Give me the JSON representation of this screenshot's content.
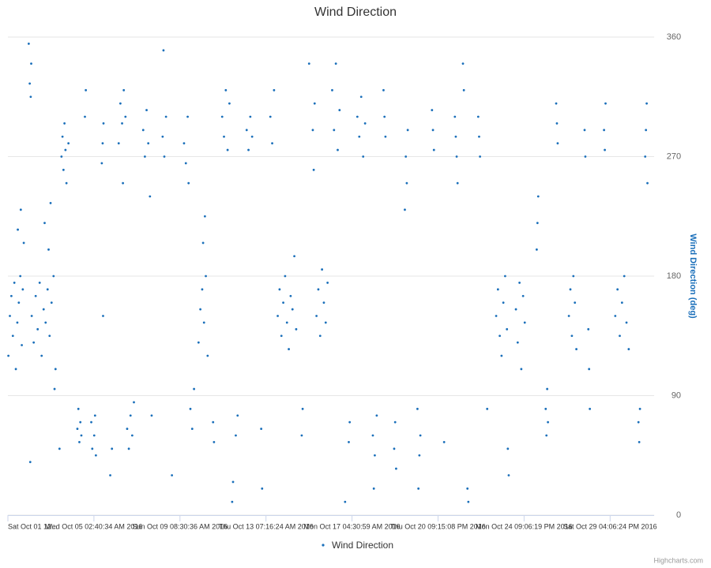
{
  "chart_data": {
    "type": "scatter",
    "title": "Wind Direction",
    "y_axis_label": "Wind Direction (deg)",
    "credits": "Highcharts.com",
    "grid": true,
    "legend": "bottom",
    "xlim": [
      "2016-10-01T12:00",
      "2016-11-01T03:00"
    ],
    "xticks": [
      {
        "value": "2016-10-01T12:00",
        "label": "Sat Oct 01 12..."
      },
      {
        "value": "2016-10-05T02:40:34",
        "label": "Wed Oct 05 02:40:34 AM 2016"
      },
      {
        "value": "2016-10-09T08:30:36",
        "label": "Sun Oct 09 08:30:36 AM 2016"
      },
      {
        "value": "2016-10-13T07:16:24",
        "label": "Thu Oct 13 07:16:24 AM 2016"
      },
      {
        "value": "2016-10-17T04:30:59",
        "label": "Mon Oct 17 04:30:59 AM 2016"
      },
      {
        "value": "2016-10-20T21:15:08",
        "label": "Thu Oct 20 09:15:08 PM 2016"
      },
      {
        "value": "2016-10-24T21:06:19",
        "label": "Mon Oct 24 09:06:19 PM 2016"
      },
      {
        "value": "2016-10-29T16:06:24",
        "label": "Sat Oct 29 04:06:24 PM 2016"
      }
    ],
    "ylim": [
      0,
      360
    ],
    "yticks": [
      0,
      90,
      180,
      270,
      360
    ],
    "series": [
      {
        "name": "Wind Direction",
        "color": "#1a6fba",
        "x": [
          "2016-10-01T12:30",
          "2016-10-01T14:00",
          "2016-10-01T15:30",
          "2016-10-01T17:00",
          "2016-10-01T18:30",
          "2016-10-01T20:00",
          "2016-10-01T21:30",
          "2016-10-01T23:00",
          "2016-10-02T00:30",
          "2016-10-02T02:00",
          "2016-10-02T03:00",
          "2016-10-01T22:00",
          "2016-10-02T01:00",
          "2016-10-02T04:00",
          "2016-10-02T09:00",
          "2016-10-02T10:00",
          "2016-10-02T11:00",
          "2016-10-02T11:30",
          "2016-10-02T10:30",
          "2016-10-02T12:00",
          "2016-10-02T14:00",
          "2016-10-02T16:00",
          "2016-10-02T18:00",
          "2016-10-02T20:00",
          "2016-10-02T22:00",
          "2016-10-03T00:00",
          "2016-10-03T02:00",
          "2016-10-03T04:00",
          "2016-10-03T06:00",
          "2016-10-03T08:00",
          "2016-10-03T10:00",
          "2016-10-03T12:00",
          "2016-10-03T01:00",
          "2016-10-03T05:00",
          "2016-10-03T07:00",
          "2016-10-03T11:00",
          "2016-10-03T16:00",
          "2016-10-03T18:00",
          "2016-10-03T19:00",
          "2016-10-03T20:00",
          "2016-10-03T21:00",
          "2016-10-03T22:00",
          "2016-10-03T23:00",
          "2016-10-04T01:00",
          "2016-10-04T10:00",
          "2016-10-04T11:00",
          "2016-10-04T12:00",
          "2016-10-04T13:00",
          "2016-10-04T14:00",
          "2016-10-04T17:36",
          "2016-10-04T18:30",
          "2016-10-05T00:00",
          "2016-10-05T01:00",
          "2016-10-05T03:00",
          "2016-10-05T04:00",
          "2016-10-05T05:00",
          "2016-10-05T12:00",
          "2016-10-05T13:00",
          "2016-10-05T13:30",
          "2016-10-05T14:00",
          "2016-10-05T22:00",
          "2016-10-06T00:00",
          "2016-10-06T08:00",
          "2016-10-06T10:00",
          "2016-10-06T12:00",
          "2016-10-06T13:00",
          "2016-10-06T14:00",
          "2016-10-06T16:00",
          "2016-10-06T18:00",
          "2016-10-06T20:00",
          "2016-10-06T22:00",
          "2016-10-07T00:00",
          "2016-10-07T02:00",
          "2016-10-07T13:00",
          "2016-10-07T15:00",
          "2016-10-07T17:00",
          "2016-10-07T19:00",
          "2016-10-07T21:00",
          "2016-10-07T23:00",
          "2016-10-08T12:00",
          "2016-10-08T13:00",
          "2016-10-08T14:00",
          "2016-10-08T16:00",
          "2016-10-08T23:00",
          "2016-10-09T13:00",
          "2016-10-09T15:00",
          "2016-10-09T17:00",
          "2016-10-09T18:00",
          "2016-10-09T20:00",
          "2016-10-09T22:00",
          "2016-10-10T00:00",
          "2016-10-10T05:00",
          "2016-10-10T07:00",
          "2016-10-10T09:00",
          "2016-10-10T10:00",
          "2016-10-10T11:00",
          "2016-10-10T12:00",
          "2016-10-10T13:00",
          "2016-10-10T15:00",
          "2016-10-10T21:00",
          "2016-10-10T22:00",
          "2016-10-11T07:00",
          "2016-10-11T09:00",
          "2016-10-11T11:00",
          "2016-10-11T13:00",
          "2016-10-11T15:00",
          "2016-10-11T18:00",
          "2016-10-11T19:00",
          "2016-10-11T22:00",
          "2016-10-12T00:00",
          "2016-10-12T10:00",
          "2016-10-12T12:00",
          "2016-10-12T14:00",
          "2016-10-12T16:00",
          "2016-10-13T02:00",
          "2016-10-13T03:00",
          "2016-10-13T12:00",
          "2016-10-13T14:00",
          "2016-10-13T16:00",
          "2016-10-13T20:00",
          "2016-10-13T22:00",
          "2016-10-14T00:00",
          "2016-10-14T02:00",
          "2016-10-14T04:00",
          "2016-10-14T06:00",
          "2016-10-14T08:00",
          "2016-10-14T10:00",
          "2016-10-14T12:00",
          "2016-10-14T14:00",
          "2016-10-14T16:00",
          "2016-10-14T22:00",
          "2016-10-14T23:00",
          "2016-10-15T06:00",
          "2016-10-15T10:00",
          "2016-10-15T11:00",
          "2016-10-15T12:00",
          "2016-10-15T14:00",
          "2016-10-15T16:00",
          "2016-10-15T18:00",
          "2016-10-15T20:00",
          "2016-10-15T22:00",
          "2016-10-16T00:00",
          "2016-10-16T02:00",
          "2016-10-16T07:00",
          "2016-10-16T09:00",
          "2016-10-16T11:00",
          "2016-10-16T13:00",
          "2016-10-16T15:00",
          "2016-10-16T21:00",
          "2016-10-17T01:00",
          "2016-10-17T02:00",
          "2016-10-17T10:00",
          "2016-10-17T12:00",
          "2016-10-17T14:00",
          "2016-10-17T16:00",
          "2016-10-17T18:00",
          "2016-10-18T02:00",
          "2016-10-18T03:00",
          "2016-10-18T04:00",
          "2016-10-18T06:00",
          "2016-10-18T13:00",
          "2016-10-18T14:00",
          "2016-10-18T15:00",
          "2016-10-19T00:00",
          "2016-10-19T01:00",
          "2016-10-19T02:00",
          "2016-10-19T11:00",
          "2016-10-19T12:00",
          "2016-10-19T13:00",
          "2016-10-19T14:00",
          "2016-10-20T00:00",
          "2016-10-20T01:00",
          "2016-10-20T02:00",
          "2016-10-20T03:00",
          "2016-10-20T15:00",
          "2016-10-20T16:00",
          "2016-10-20T17:00",
          "2016-10-21T04:00",
          "2016-10-21T16:00",
          "2016-10-21T17:00",
          "2016-10-21T18:00",
          "2016-10-21T19:00",
          "2016-10-22T01:00",
          "2016-10-22T02:00",
          "2016-10-22T06:00",
          "2016-10-22T07:00",
          "2016-10-22T18:00",
          "2016-10-22T19:00",
          "2016-10-22T20:00",
          "2016-10-23T04:00",
          "2016-10-23T14:00",
          "2016-10-23T16:00",
          "2016-10-23T18:00",
          "2016-10-23T20:00",
          "2016-10-23T22:00",
          "2016-10-24T00:00",
          "2016-10-24T02:00",
          "2016-10-24T03:00",
          "2016-10-24T04:00",
          "2016-10-24T12:00",
          "2016-10-24T14:00",
          "2016-10-24T16:00",
          "2016-10-24T18:00",
          "2016-10-24T20:00",
          "2016-10-24T22:00",
          "2016-10-25T14:00",
          "2016-10-25T15:00",
          "2016-10-25T16:00",
          "2016-10-26T02:00",
          "2016-10-26T03:00",
          "2016-10-26T04:00",
          "2016-10-26T05:00",
          "2016-10-26T16:00",
          "2016-10-26T17:00",
          "2016-10-26T18:00",
          "2016-10-27T09:00",
          "2016-10-27T11:00",
          "2016-10-27T13:00",
          "2016-10-27T15:00",
          "2016-10-27T17:00",
          "2016-10-27T19:00",
          "2016-10-28T06:00",
          "2016-10-28T07:00",
          "2016-10-28T11:00",
          "2016-10-28T12:00",
          "2016-10-28T13:00",
          "2016-10-29T08:00",
          "2016-10-29T09:00",
          "2016-10-29T10:00",
          "2016-10-29T23:00",
          "2016-10-30T02:00",
          "2016-10-30T05:00",
          "2016-10-30T08:00",
          "2016-10-30T11:00",
          "2016-10-30T14:00",
          "2016-10-30T17:00",
          "2016-10-31T06:00",
          "2016-10-31T07:00",
          "2016-10-31T08:00",
          "2016-10-31T15:00",
          "2016-10-31T16:00",
          "2016-10-31T17:00",
          "2016-10-31T18:00"
        ],
        "values": [
          120,
          150,
          165,
          135,
          175,
          110,
          145,
          160,
          180,
          128,
          170,
          215,
          230,
          205,
          355,
          325,
          315,
          340,
          40,
          150,
          130,
          165,
          140,
          175,
          120,
          155,
          145,
          170,
          135,
          160,
          180,
          110,
          220,
          200,
          235,
          95,
          50,
          270,
          285,
          260,
          295,
          275,
          250,
          280,
          65,
          80,
          55,
          70,
          60,
          300,
          320,
          70,
          50,
          60,
          75,
          45,
          265,
          280,
          150,
          295,
          30,
          50,
          280,
          310,
          295,
          250,
          320,
          300,
          65,
          50,
          75,
          60,
          85,
          290,
          270,
          305,
          280,
          240,
          75,
          285,
          350,
          270,
          300,
          30,
          280,
          265,
          300,
          250,
          80,
          65,
          95,
          130,
          155,
          170,
          205,
          145,
          225,
          180,
          120,
          70,
          55,
          300,
          285,
          320,
          275,
          310,
          10,
          25,
          60,
          75,
          290,
          275,
          300,
          285,
          65,
          20,
          300,
          280,
          320,
          150,
          170,
          135,
          160,
          180,
          145,
          125,
          165,
          155,
          195,
          140,
          60,
          80,
          340,
          290,
          260,
          310,
          150,
          170,
          135,
          185,
          160,
          145,
          175,
          320,
          290,
          340,
          275,
          305,
          10,
          55,
          70,
          300,
          285,
          315,
          270,
          295,
          60,
          20,
          45,
          75,
          320,
          300,
          285,
          50,
          70,
          35,
          230,
          270,
          250,
          290,
          80,
          20,
          45,
          60,
          305,
          290,
          275,
          55,
          300,
          285,
          270,
          250,
          340,
          320,
          20,
          10,
          300,
          285,
          270,
          80,
          150,
          170,
          135,
          120,
          160,
          180,
          140,
          50,
          30,
          155,
          130,
          175,
          110,
          165,
          145,
          200,
          220,
          240,
          80,
          60,
          95,
          70,
          310,
          295,
          280,
          150,
          170,
          135,
          180,
          160,
          125,
          290,
          270,
          140,
          110,
          80,
          290,
          275,
          310,
          150,
          170,
          135,
          160,
          180,
          145,
          125,
          70,
          55,
          80,
          270,
          290,
          310,
          250
        ]
      }
    ]
  }
}
